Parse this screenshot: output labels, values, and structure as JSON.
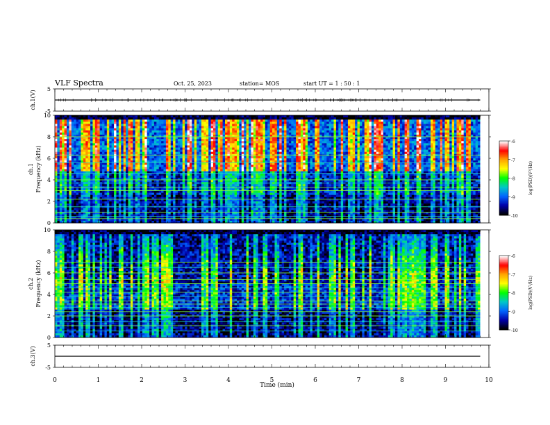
{
  "header": {
    "title": "VLF Spectra",
    "date": "Oct. 25, 2023",
    "station": "station= MOS",
    "start": "start  UT  =   1 : 50 : 1"
  },
  "colorbar": {
    "label": "log(PSD)(V²/Hz)",
    "ticks": [
      "-6",
      "-7",
      "-8",
      "-9",
      "-10"
    ],
    "stops": [
      "#ffffff",
      "#ff0000",
      "#ffa500",
      "#ffff00",
      "#00ff00",
      "#00c8c8",
      "#0064ff",
      "#0000aa",
      "#000000"
    ]
  },
  "chart_data": [
    {
      "type": "line",
      "panel": "ch1_waveform",
      "ylabel": "ch.1(V)",
      "ylim": [
        -5,
        5
      ],
      "yticks": [
        "5",
        "-5"
      ],
      "xlim": [
        0,
        10
      ],
      "series": [
        {
          "x": [
            0,
            9.8
          ],
          "values": [
            0,
            0
          ]
        }
      ]
    },
    {
      "type": "heatmap",
      "panel": "ch1_spectrogram",
      "ylabel": "ch.1 Frequency (kHz)",
      "ylim": [
        0,
        10
      ],
      "yticks": [
        "0",
        "2",
        "4",
        "6",
        "8",
        "10"
      ],
      "xlim": [
        0,
        10
      ],
      "data_extent_min": 9.8,
      "z_range": [
        -10,
        -6
      ],
      "lines_khz": [
        0.4,
        0.6,
        1.0,
        1.5,
        2.2,
        3.0,
        3.3,
        3.7,
        4.0,
        4.6,
        5.6,
        6.3,
        8.0
      ]
    },
    {
      "type": "heatmap",
      "panel": "ch2_spectrogram",
      "ylabel": "ch.2 Frequency (kHz)",
      "ylim": [
        0,
        10
      ],
      "yticks": [
        "0",
        "2",
        "4",
        "6",
        "8",
        "10"
      ],
      "xlim": [
        0,
        10
      ],
      "data_extent_min": 9.8,
      "z_range": [
        -10,
        -6
      ],
      "lines_khz": [
        0.6,
        1.1,
        1.5,
        2.0,
        2.4,
        2.8,
        3.1,
        3.4,
        3.8,
        4.2,
        4.6,
        5.0,
        5.4,
        6.0,
        6.5,
        7.0
      ]
    },
    {
      "type": "line",
      "panel": "ch3_waveform",
      "ylabel": "ch.3(V)",
      "ylim": [
        -5,
        5
      ],
      "yticks": [
        "5",
        "-5"
      ],
      "xlim": [
        0,
        10
      ],
      "series": [
        {
          "x": [
            0,
            9.8
          ],
          "values": [
            0,
            0
          ]
        }
      ]
    }
  ],
  "xaxis": {
    "label": "Time  (min)",
    "ticks": [
      "0",
      "1",
      "2",
      "3",
      "4",
      "5",
      "6",
      "7",
      "8",
      "9",
      "10"
    ]
  }
}
